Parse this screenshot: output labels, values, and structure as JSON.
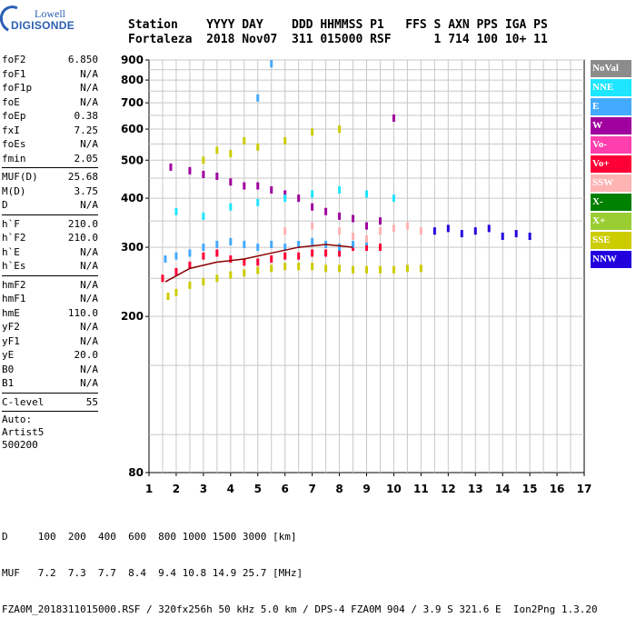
{
  "logo": {
    "line1": "Lowell",
    "line2": "DIGISONDE"
  },
  "header": {
    "labels": "Station    YYYY DAY    DDD HHMMSS P1   FFS S AXN PPS IGA PS",
    "values": "Fortaleza  2018 Nov07  311 015000 RSF      1 714 100 10+ 11"
  },
  "params": {
    "group1": [
      {
        "k": "foF2",
        "v": "6.850"
      },
      {
        "k": "foF1",
        "v": "N/A"
      },
      {
        "k": "foF1p",
        "v": "N/A"
      },
      {
        "k": "foE",
        "v": "N/A"
      },
      {
        "k": "foEp",
        "v": "0.38"
      },
      {
        "k": "fxI",
        "v": "7.25"
      },
      {
        "k": "foEs",
        "v": "N/A"
      },
      {
        "k": "fmin",
        "v": "2.05"
      }
    ],
    "group2": [
      {
        "k": "MUF(D)",
        "v": "25.68"
      },
      {
        "k": "M(D)",
        "v": "3.75"
      },
      {
        "k": "D",
        "v": "N/A"
      }
    ],
    "group3": [
      {
        "k": "h`F",
        "v": "210.0"
      },
      {
        "k": "h`F2",
        "v": "210.0"
      },
      {
        "k": "h`E",
        "v": "N/A"
      },
      {
        "k": "h`Es",
        "v": "N/A"
      }
    ],
    "group4": [
      {
        "k": "hmF2",
        "v": "N/A"
      },
      {
        "k": "hmF1",
        "v": "N/A"
      },
      {
        "k": "hmE",
        "v": "110.0"
      },
      {
        "k": "yF2",
        "v": "N/A"
      },
      {
        "k": "yF1",
        "v": "N/A"
      },
      {
        "k": "yE",
        "v": "20.0"
      },
      {
        "k": "B0",
        "v": "N/A"
      },
      {
        "k": "B1",
        "v": "N/A"
      }
    ],
    "clevel": {
      "k": "C-level",
      "v": "55"
    },
    "auto": [
      "Auto:",
      "Artist5",
      "500200"
    ]
  },
  "legend": [
    {
      "label": "NoVal",
      "color": "#8c8c8c"
    },
    {
      "label": "NNE",
      "color": "#1ee6ff"
    },
    {
      "label": "E",
      "color": "#44aaff"
    },
    {
      "label": "W",
      "color": "#a0009e"
    },
    {
      "label": "Vo-",
      "color": "#ff3fae"
    },
    {
      "label": "Vo+",
      "color": "#ff0036"
    },
    {
      "label": "SSW",
      "color": "#ffb3b3"
    },
    {
      "label": "X-",
      "color": "#008000"
    },
    {
      "label": "X+",
      "color": "#9acd32"
    },
    {
      "label": "SSE",
      "color": "#cccc00"
    },
    {
      "label": "NNW",
      "color": "#2200dd"
    }
  ],
  "footer": {
    "line1": "D     100  200  400  600  800 1000 1500 3000 [km]",
    "line2": "MUF   7.2  7.3  7.7  8.4  9.4 10.8 14.9 25.7 [MHz]",
    "line3": "FZA0M_2018311015000.RSF / 320fx256h 50 kHz 5.0 km / DPS-4 FZA0M 904 / 3.9 S 321.6 E  Ion2Png 1.3.20"
  },
  "chart_data": {
    "type": "scatter",
    "x_ticks": [
      "1",
      "2",
      "3",
      "4",
      "5",
      "6",
      "7",
      "8",
      "9",
      "10",
      "11",
      "12",
      "13",
      "14",
      "15",
      "16",
      "17"
    ],
    "y_ticks": [
      "80",
      "200",
      "300",
      "400",
      "500",
      "600",
      "700",
      "800",
      "900"
    ],
    "xlim": [
      1,
      17
    ],
    "ylim": [
      80,
      900
    ],
    "y_scale": "log",
    "grid": true,
    "series": [
      {
        "name": "SSE",
        "color": "#cccc00",
        "points": [
          [
            1.7,
            225
          ],
          [
            2.0,
            230
          ],
          [
            2.5,
            240
          ],
          [
            3.0,
            245
          ],
          [
            3.5,
            250
          ],
          [
            4.0,
            255
          ],
          [
            4.5,
            258
          ],
          [
            5.0,
            262
          ],
          [
            5.5,
            265
          ],
          [
            6.0,
            268
          ],
          [
            6.5,
            268
          ],
          [
            7.0,
            268
          ],
          [
            7.5,
            265
          ],
          [
            8.0,
            265
          ],
          [
            8.5,
            263
          ],
          [
            9.0,
            263
          ],
          [
            9.5,
            263
          ],
          [
            10.0,
            263
          ],
          [
            10.5,
            265
          ],
          [
            11.0,
            265
          ],
          [
            3.0,
            500
          ],
          [
            3.5,
            530
          ],
          [
            4.0,
            520
          ],
          [
            4.5,
            560
          ],
          [
            5.0,
            540
          ],
          [
            6.0,
            560
          ],
          [
            7.0,
            590
          ],
          [
            8.0,
            600
          ]
        ]
      },
      {
        "name": "Vo+",
        "color": "#ff0036",
        "points": [
          [
            1.5,
            250
          ],
          [
            2.0,
            260
          ],
          [
            2.5,
            270
          ],
          [
            3.0,
            285
          ],
          [
            3.5,
            290
          ],
          [
            4.0,
            280
          ],
          [
            4.5,
            275
          ],
          [
            5.0,
            275
          ],
          [
            5.5,
            280
          ],
          [
            6.0,
            285
          ],
          [
            6.5,
            285
          ],
          [
            7.0,
            290
          ],
          [
            7.5,
            290
          ],
          [
            8.0,
            290
          ],
          [
            8.5,
            300
          ],
          [
            9.0,
            300
          ],
          [
            9.5,
            300
          ]
        ]
      },
      {
        "name": "E",
        "color": "#44aaff",
        "points": [
          [
            1.6,
            280
          ],
          [
            2.0,
            285
          ],
          [
            2.5,
            290
          ],
          [
            3.0,
            300
          ],
          [
            3.5,
            305
          ],
          [
            4.0,
            310
          ],
          [
            4.5,
            305
          ],
          [
            5.0,
            300
          ],
          [
            5.5,
            305
          ],
          [
            6.0,
            300
          ],
          [
            6.5,
            305
          ],
          [
            7.0,
            310
          ],
          [
            7.5,
            305
          ],
          [
            8.0,
            300
          ],
          [
            8.5,
            305
          ],
          [
            9.0,
            310
          ],
          [
            5.0,
            720
          ],
          [
            5.5,
            880
          ]
        ]
      },
      {
        "name": "SSW",
        "color": "#ffb3b3",
        "points": [
          [
            6.0,
            330
          ],
          [
            7.0,
            340
          ],
          [
            8.0,
            330
          ],
          [
            8.5,
            320
          ],
          [
            9.0,
            315
          ],
          [
            9.5,
            330
          ],
          [
            10.0,
            335
          ],
          [
            10.5,
            340
          ],
          [
            11.0,
            330
          ]
        ]
      },
      {
        "name": "W",
        "color": "#a0009e",
        "points": [
          [
            1.8,
            480
          ],
          [
            2.5,
            470
          ],
          [
            3.0,
            460
          ],
          [
            3.5,
            455
          ],
          [
            4.0,
            440
          ],
          [
            4.5,
            430
          ],
          [
            5.0,
            430
          ],
          [
            5.5,
            420
          ],
          [
            6.0,
            410
          ],
          [
            6.5,
            400
          ],
          [
            7.0,
            380
          ],
          [
            7.5,
            370
          ],
          [
            8.0,
            360
          ],
          [
            8.5,
            355
          ],
          [
            9.0,
            340
          ],
          [
            9.5,
            350
          ],
          [
            10.0,
            640
          ]
        ]
      },
      {
        "name": "NNW",
        "color": "#2200dd",
        "points": [
          [
            11.5,
            330
          ],
          [
            12.0,
            335
          ],
          [
            12.5,
            325
          ],
          [
            13.0,
            330
          ],
          [
            13.5,
            335
          ],
          [
            14.0,
            320
          ],
          [
            14.5,
            325
          ],
          [
            15.0,
            320
          ]
        ]
      },
      {
        "name": "NNE",
        "color": "#1ee6ff",
        "points": [
          [
            2.0,
            370
          ],
          [
            3.0,
            360
          ],
          [
            4.0,
            380
          ],
          [
            5.0,
            390
          ],
          [
            6.0,
            400
          ],
          [
            7.0,
            410
          ],
          [
            8.0,
            420
          ],
          [
            9.0,
            410
          ],
          [
            10.0,
            400
          ]
        ]
      }
    ]
  }
}
